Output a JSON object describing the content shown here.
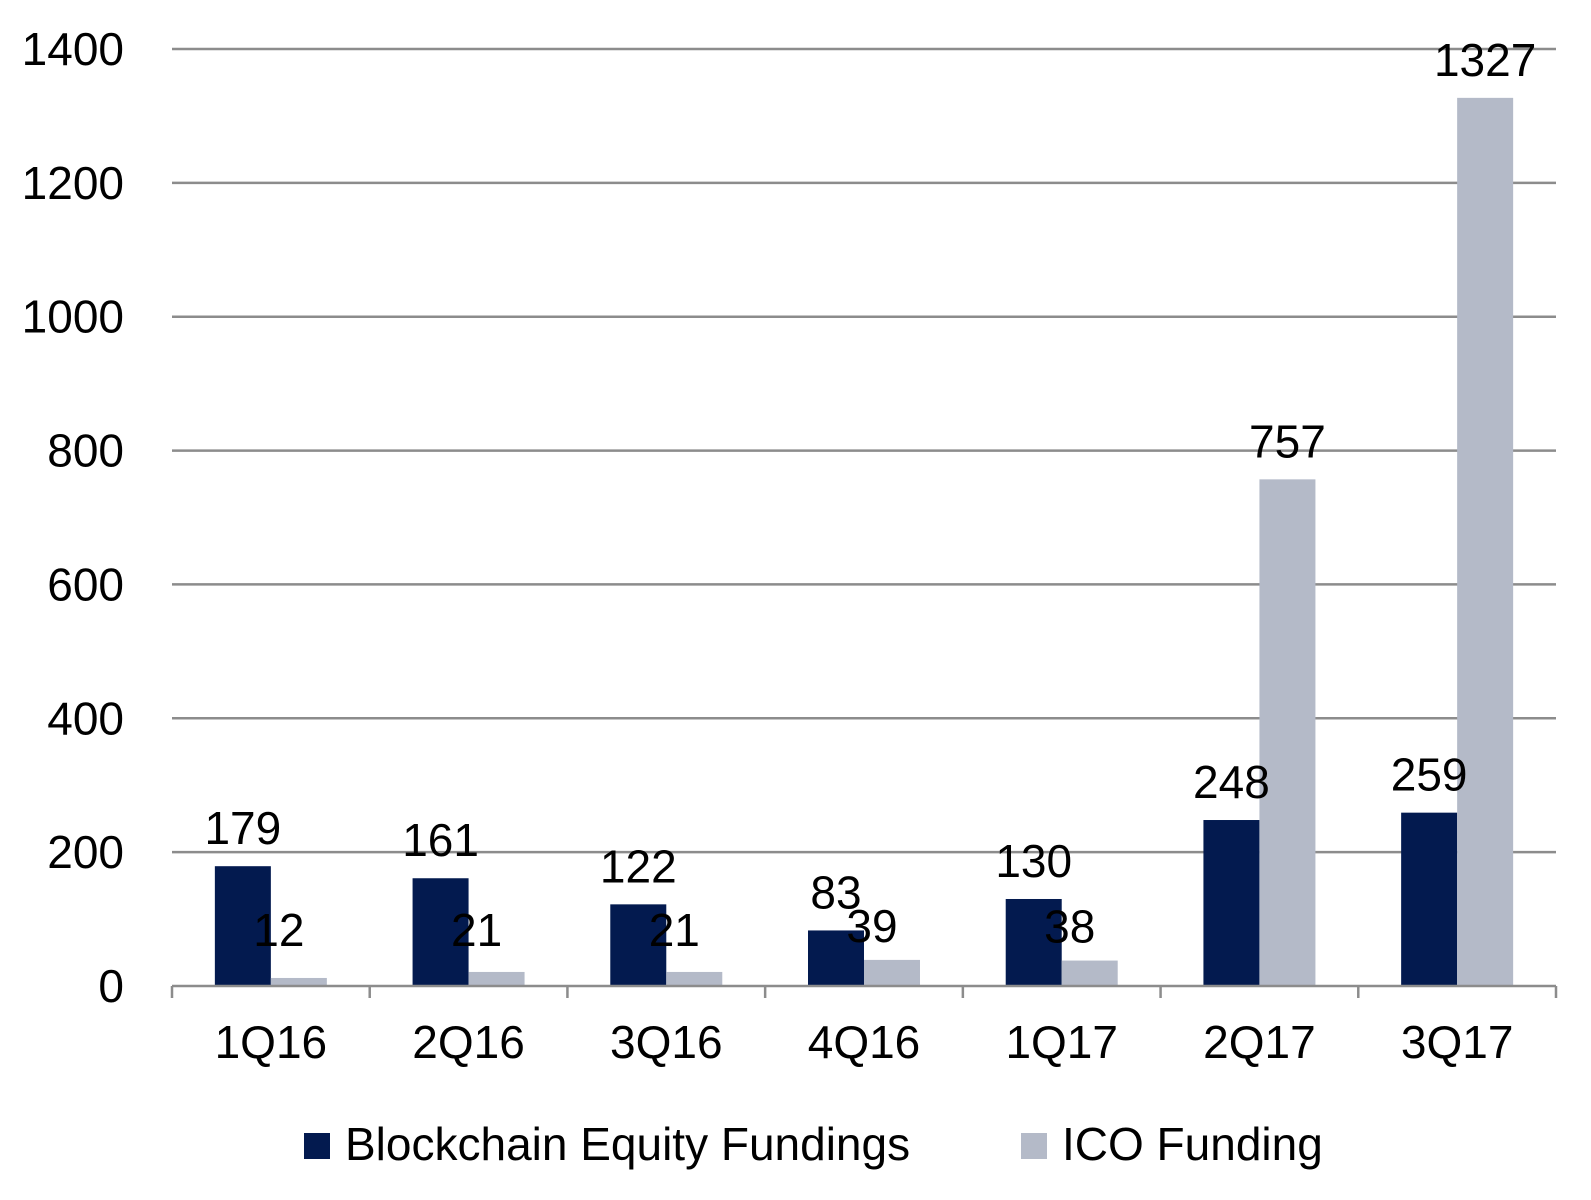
{
  "chart_data": {
    "type": "bar",
    "categories": [
      "1Q16",
      "2Q16",
      "3Q16",
      "4Q16",
      "1Q17",
      "2Q17",
      "3Q17"
    ],
    "series": [
      {
        "name": "Blockchain Equity Fundings",
        "color": "#031a4f",
        "values": [
          179,
          161,
          122,
          83,
          130,
          248,
          259
        ],
        "labels": [
          "179",
          "161",
          "122",
          "83",
          "130",
          "248",
          "259"
        ]
      },
      {
        "name": "ICO Funding",
        "color": "#b4bac8",
        "values": [
          12,
          21,
          21,
          39,
          38,
          757,
          1327
        ],
        "labels": [
          "12",
          "21",
          "21",
          "39",
          "38",
          "757",
          "1327"
        ]
      }
    ],
    "ylim": [
      0,
      1400
    ],
    "yticks": [
      0,
      200,
      400,
      600,
      800,
      1000,
      1200,
      1400
    ],
    "ytick_labels": [
      "0",
      "200",
      "400",
      "600",
      "800",
      "1000",
      "1200",
      "1400"
    ],
    "grid": true,
    "legend_position": "bottom",
    "title": "",
    "xlabel": "",
    "ylabel": ""
  }
}
